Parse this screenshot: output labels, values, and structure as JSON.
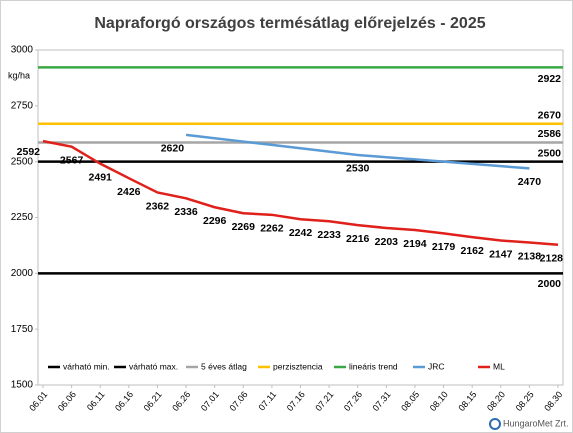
{
  "chart_data": {
    "type": "line",
    "title": "Napraforgó országos termésátlag előrejelzés - 2025",
    "y_label": "kg/ha",
    "categories": [
      "06.01",
      "06.06",
      "06.11",
      "06.16",
      "06.21",
      "06.26",
      "07.01",
      "07.06",
      "07.11",
      "07.16",
      "07.21",
      "07.26",
      "07.31",
      "08.05",
      "08.10",
      "08.15",
      "08.20",
      "08.25",
      "08.30"
    ],
    "ylim": [
      1500,
      3000
    ],
    "yticks": [
      1500,
      1750,
      2000,
      2250,
      2500,
      2750,
      3000
    ],
    "series": [
      {
        "name": "várható min.",
        "color": "#000000",
        "value": 2000
      },
      {
        "name": "várható max.",
        "color": "#000000",
        "value": 2500
      },
      {
        "name": "5 éves átlag",
        "color": "#a6a6a6",
        "value": 2586
      },
      {
        "name": "perzisztencia",
        "color": "#ffc000",
        "value": 2670
      },
      {
        "name": "lineáris trend",
        "color": "#3aa845",
        "value": 2922
      },
      {
        "name": "JRC",
        "color": "#5b9bd5",
        "values": [
          null,
          null,
          null,
          null,
          null,
          2620,
          2605,
          2590,
          2575,
          2560,
          2545,
          2530,
          2520,
          2510,
          2500,
          2490,
          2480,
          2470,
          null
        ],
        "value_labels": [
          null,
          null,
          null,
          null,
          null,
          "2620",
          null,
          null,
          null,
          null,
          null,
          "2530",
          null,
          null,
          null,
          null,
          null,
          "2470",
          null
        ]
      },
      {
        "name": "ML",
        "color": "#e0201b",
        "values": [
          2592,
          2567,
          2491,
          2426,
          2362,
          2336,
          2296,
          2269,
          2262,
          2242,
          2233,
          2216,
          2203,
          2194,
          2179,
          2162,
          2147,
          2138,
          2128
        ]
      }
    ],
    "footer": "HungaroMet Zrt."
  }
}
